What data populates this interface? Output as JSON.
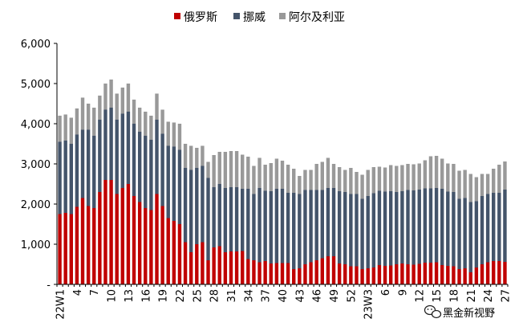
{
  "chart_data": {
    "type": "bar",
    "stacked": true,
    "legend_position": "top-center",
    "grid": false,
    "ylim": [
      0,
      6000
    ],
    "y_ticks": [
      0,
      1000,
      2000,
      3000,
      4000,
      5000,
      6000
    ],
    "y_tick_labels": [
      "-",
      "1,000",
      "2,000",
      "3,000",
      "4,000",
      "5,000",
      "6,000"
    ],
    "x_tick_labels": [
      "22W1",
      "4",
      "7",
      "10",
      "13",
      "16",
      "19",
      "22",
      "25",
      "28",
      "31",
      "34",
      "37",
      "40",
      "43",
      "46",
      "49",
      "52",
      "23W3",
      "6",
      "9",
      "12",
      "15",
      "18",
      "21",
      "24",
      "27"
    ],
    "x_tick_every": 3,
    "series": [
      {
        "name": "俄罗斯",
        "color": "#C00000",
        "values": [
          1750,
          1780,
          1750,
          1930,
          2150,
          1950,
          1900,
          2300,
          2600,
          2600,
          2250,
          2400,
          2500,
          2200,
          2050,
          1900,
          1850,
          2250,
          1950,
          1650,
          1580,
          1500,
          1050,
          800,
          1000,
          1050,
          600,
          920,
          950,
          800,
          820,
          820,
          830,
          630,
          600,
          550,
          580,
          520,
          530,
          530,
          530,
          380,
          400,
          500,
          550,
          600,
          650,
          700,
          700,
          520,
          500,
          450,
          450,
          380,
          400,
          420,
          480,
          460,
          470,
          500,
          520,
          500,
          490,
          510,
          540,
          540,
          550,
          480,
          460,
          450,
          380,
          400,
          300,
          420,
          500,
          550,
          580,
          580,
          560
        ]
      },
      {
        "name": "挪威",
        "color": "#44546A",
        "values": [
          1800,
          1800,
          1750,
          1800,
          1700,
          1900,
          1800,
          1800,
          1750,
          1800,
          1850,
          1850,
          1800,
          1800,
          1750,
          1800,
          1750,
          1850,
          1800,
          1800,
          1850,
          1850,
          1850,
          2050,
          1900,
          1900,
          2050,
          1500,
          1550,
          1600,
          1600,
          1600,
          1550,
          1750,
          1650,
          1850,
          1750,
          1800,
          1850,
          1850,
          1750,
          1900,
          1850,
          1850,
          1800,
          1750,
          1700,
          1700,
          1700,
          1800,
          1800,
          1800,
          1800,
          1750,
          1800,
          1850,
          1850,
          1850,
          1850,
          1800,
          1800,
          1850,
          1850,
          1850,
          1850,
          1850,
          1850,
          1900,
          1850,
          1850,
          1750,
          1750,
          1750,
          1650,
          1700,
          1700,
          1700,
          1700,
          1800
        ]
      },
      {
        "name": "阿尔及利亚",
        "color": "#999999",
        "values": [
          650,
          650,
          650,
          650,
          800,
          650,
          700,
          600,
          650,
          700,
          650,
          650,
          700,
          600,
          600,
          600,
          600,
          650,
          600,
          600,
          600,
          650,
          600,
          600,
          500,
          500,
          400,
          800,
          800,
          900,
          900,
          900,
          850,
          800,
          700,
          750,
          650,
          700,
          750,
          700,
          700,
          600,
          450,
          500,
          500,
          650,
          700,
          750,
          600,
          600,
          550,
          650,
          550,
          600,
          650,
          650,
          600,
          600,
          650,
          650,
          650,
          650,
          650,
          650,
          700,
          800,
          800,
          750,
          700,
          700,
          700,
          700,
          700,
          600,
          550,
          500,
          600,
          700,
          700
        ]
      }
    ]
  },
  "watermark": {
    "icon": "wechat-icon",
    "text": "黑金新视野"
  }
}
